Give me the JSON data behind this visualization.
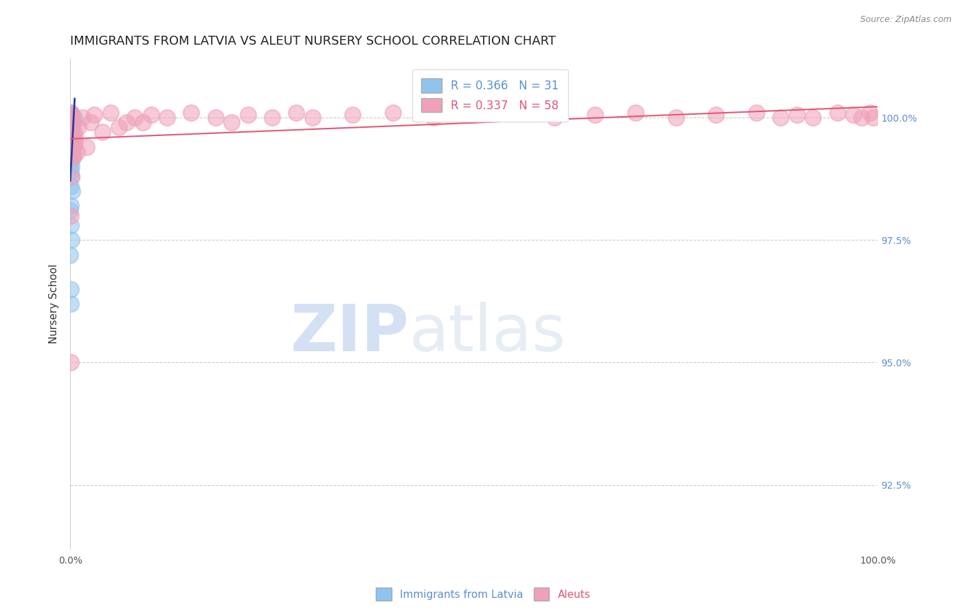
{
  "title": "IMMIGRANTS FROM LATVIA VS ALEUT NURSERY SCHOOL CORRELATION CHART",
  "source": "Source: ZipAtlas.com",
  "ylabel": "Nursery School",
  "xlim": [
    0.0,
    100.0
  ],
  "ylim": [
    91.2,
    101.2
  ],
  "yticks": [
    92.5,
    95.0,
    97.5,
    100.0
  ],
  "blue_label": "Immigrants from Latvia",
  "pink_label": "Aleuts",
  "blue_R": "0.366",
  "blue_N": "31",
  "pink_R": "0.337",
  "pink_N": "58",
  "blue_color": "#8EC4EE",
  "pink_color": "#F0A0B8",
  "blue_line_color": "#2040A0",
  "pink_line_color": "#E05878",
  "blue_scatter_x": [
    0.05,
    0.1,
    0.15,
    0.2,
    0.05,
    0.1,
    0.08,
    0.12,
    0.18,
    0.22,
    0.06,
    0.09,
    0.14,
    0.07,
    0.11,
    0.03,
    0.04,
    0.06,
    0.08,
    0.3,
    0.5,
    0.04,
    0.07,
    0.12,
    0.02,
    0.05,
    0.08,
    0.1,
    0.15,
    0.02,
    0.04
  ],
  "blue_scatter_y": [
    100.05,
    100.1,
    100.0,
    99.9,
    99.8,
    99.6,
    99.3,
    99.0,
    98.8,
    98.5,
    98.2,
    97.8,
    97.5,
    99.2,
    99.5,
    99.7,
    99.1,
    98.9,
    98.6,
    99.9,
    100.0,
    96.5,
    96.2,
    99.4,
    98.1,
    100.05,
    100.05,
    100.0,
    99.7,
    97.2,
    99.8
  ],
  "pink_scatter_x": [
    0.05,
    0.1,
    0.08,
    0.15,
    0.2,
    0.05,
    0.12,
    0.25,
    0.3,
    0.18,
    0.4,
    0.5,
    0.6,
    0.8,
    1.0,
    1.5,
    2.0,
    2.5,
    3.0,
    4.0,
    5.0,
    6.0,
    7.0,
    8.0,
    9.0,
    10.0,
    12.0,
    15.0,
    18.0,
    20.0,
    22.0,
    25.0,
    28.0,
    30.0,
    35.0,
    40.0,
    45.0,
    50.0,
    55.0,
    60.0,
    65.0,
    70.0,
    75.0,
    80.0,
    85.0,
    88.0,
    90.0,
    92.0,
    95.0,
    97.0,
    98.0,
    99.0,
    99.5,
    0.07,
    0.09,
    0.35,
    0.45,
    0.55
  ],
  "pink_scatter_y": [
    100.05,
    100.1,
    99.9,
    100.05,
    100.0,
    99.5,
    99.3,
    99.8,
    99.6,
    98.8,
    99.2,
    99.7,
    99.5,
    99.3,
    99.8,
    100.0,
    99.4,
    99.9,
    100.05,
    99.7,
    100.1,
    99.8,
    99.9,
    100.0,
    99.9,
    100.05,
    100.0,
    100.1,
    100.0,
    99.9,
    100.05,
    100.0,
    100.1,
    100.0,
    100.05,
    100.1,
    100.0,
    100.05,
    100.1,
    100.0,
    100.05,
    100.1,
    100.0,
    100.05,
    100.1,
    100.0,
    100.05,
    100.0,
    100.1,
    100.05,
    100.0,
    100.1,
    100.0,
    95.0,
    98.0,
    99.2,
    99.4,
    99.6
  ],
  "watermark_zip": "ZIP",
  "watermark_atlas": "atlas",
  "background_color": "#FFFFFF",
  "grid_color": "#CCCCCC",
  "right_tick_color": "#5B8FD4",
  "title_fontsize": 13,
  "label_fontsize": 11,
  "tick_fontsize": 10,
  "legend_fontsize": 12
}
